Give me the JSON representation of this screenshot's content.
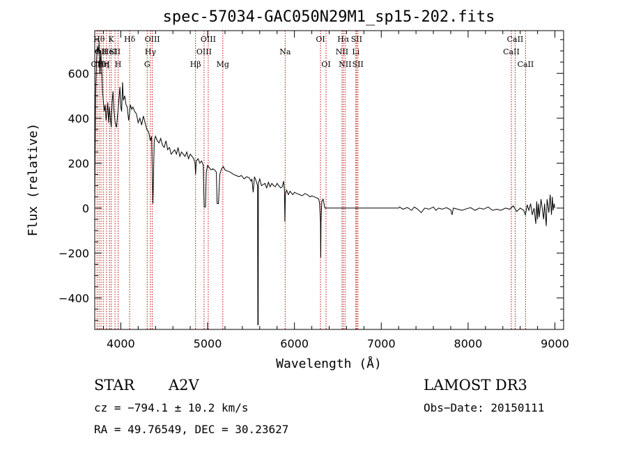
{
  "chart_data": {
    "type": "line",
    "title": "spec-57034-GAC050N29M1_sp15-202.fits",
    "xlabel": "Wavelength (Å)",
    "ylabel": "Flux (relative)",
    "xlim": [
      3700,
      9100
    ],
    "ylim": [
      -540,
      790
    ],
    "x_ticks": [
      4000,
      5000,
      6000,
      7000,
      8000,
      9000
    ],
    "y_ticks": [
      -400,
      -200,
      0,
      200,
      400,
      600
    ],
    "grid": false,
    "series": [
      {
        "points": [
          [
            3700,
            0
          ],
          [
            3705,
            250
          ],
          [
            3710,
            500
          ],
          [
            3720,
            650
          ],
          [
            3730,
            720
          ],
          [
            3740,
            690
          ],
          [
            3750,
            740
          ],
          [
            3760,
            600
          ],
          [
            3770,
            700
          ],
          [
            3780,
            620
          ],
          [
            3790,
            520
          ],
          [
            3800,
            470
          ],
          [
            3810,
            430
          ],
          [
            3820,
            460
          ],
          [
            3830,
            390
          ],
          [
            3840,
            420
          ],
          [
            3850,
            470
          ],
          [
            3860,
            380
          ],
          [
            3870,
            450
          ],
          [
            3880,
            400
          ],
          [
            3890,
            360
          ],
          [
            3900,
            470
          ],
          [
            3910,
            520
          ],
          [
            3920,
            440
          ],
          [
            3935,
            380
          ],
          [
            3950,
            360
          ],
          [
            3965,
            420
          ],
          [
            3980,
            490
          ],
          [
            3990,
            540
          ],
          [
            4000,
            450
          ],
          [
            4010,
            430
          ],
          [
            4020,
            560
          ],
          [
            4030,
            480
          ],
          [
            4045,
            500
          ],
          [
            4060,
            460
          ],
          [
            4075,
            450
          ],
          [
            4090,
            390
          ],
          [
            4100,
            420
          ],
          [
            4110,
            460
          ],
          [
            4125,
            440
          ],
          [
            4140,
            450
          ],
          [
            4160,
            430
          ],
          [
            4180,
            420
          ],
          [
            4200,
            380
          ],
          [
            4220,
            400
          ],
          [
            4240,
            370
          ],
          [
            4260,
            410
          ],
          [
            4280,
            380
          ],
          [
            4300,
            350
          ],
          [
            4320,
            340
          ],
          [
            4340,
            300
          ],
          [
            4355,
            320
          ],
          [
            4370,
            20
          ],
          [
            4385,
            300
          ],
          [
            4400,
            320
          ],
          [
            4420,
            300
          ],
          [
            4440,
            290
          ],
          [
            4460,
            310
          ],
          [
            4480,
            280
          ],
          [
            4500,
            270
          ],
          [
            4520,
            300
          ],
          [
            4540,
            260
          ],
          [
            4560,
            270
          ],
          [
            4580,
            240
          ],
          [
            4600,
            250
          ],
          [
            4620,
            260
          ],
          [
            4640,
            240
          ],
          [
            4660,
            270
          ],
          [
            4680,
            230
          ],
          [
            4700,
            250
          ],
          [
            4720,
            240
          ],
          [
            4740,
            230
          ],
          [
            4760,
            250
          ],
          [
            4780,
            220
          ],
          [
            4800,
            240
          ],
          [
            4820,
            230
          ],
          [
            4840,
            220
          ],
          [
            4855,
            200
          ],
          [
            4861,
            150
          ],
          [
            4870,
            210
          ],
          [
            4890,
            220
          ],
          [
            4910,
            200
          ],
          [
            4930,
            210
          ],
          [
            4950,
            190
          ],
          [
            4960,
            5
          ],
          [
            4975,
            5
          ],
          [
            4985,
            160
          ],
          [
            5000,
            190
          ],
          [
            5020,
            180
          ],
          [
            5040,
            170
          ],
          [
            5060,
            175
          ],
          [
            5080,
            170
          ],
          [
            5100,
            160
          ],
          [
            5110,
            20
          ],
          [
            5125,
            20
          ],
          [
            5140,
            150
          ],
          [
            5160,
            175
          ],
          [
            5180,
            185
          ],
          [
            5200,
            170
          ],
          [
            5230,
            165
          ],
          [
            5260,
            160
          ],
          [
            5300,
            150
          ],
          [
            5330,
            145
          ],
          [
            5360,
            140
          ],
          [
            5390,
            145
          ],
          [
            5420,
            130
          ],
          [
            5450,
            140
          ],
          [
            5480,
            135
          ],
          [
            5500,
            120
          ],
          [
            5510,
            130
          ],
          [
            5525,
            70
          ],
          [
            5540,
            140
          ],
          [
            5560,
            120
          ],
          [
            5575,
            100
          ],
          [
            5578,
            -520
          ],
          [
            5582,
            -520
          ],
          [
            5585,
            110
          ],
          [
            5600,
            130
          ],
          [
            5620,
            100
          ],
          [
            5640,
            105
          ],
          [
            5660,
            110
          ],
          [
            5680,
            90
          ],
          [
            5700,
            115
          ],
          [
            5720,
            95
          ],
          [
            5740,
            110
          ],
          [
            5760,
            100
          ],
          [
            5780,
            95
          ],
          [
            5800,
            110
          ],
          [
            5820,
            100
          ],
          [
            5840,
            90
          ],
          [
            5860,
            95
          ],
          [
            5875,
            120
          ],
          [
            5885,
            80
          ],
          [
            5890,
            -60
          ],
          [
            5895,
            60
          ],
          [
            5910,
            80
          ],
          [
            5930,
            60
          ],
          [
            5950,
            75
          ],
          [
            5980,
            60
          ],
          [
            6000,
            70
          ],
          [
            6030,
            65
          ],
          [
            6060,
            60
          ],
          [
            6090,
            55
          ],
          [
            6120,
            65
          ],
          [
            6150,
            60
          ],
          [
            6180,
            50
          ],
          [
            6200,
            55
          ],
          [
            6230,
            50
          ],
          [
            6260,
            45
          ],
          [
            6280,
            40
          ],
          [
            6290,
            20
          ],
          [
            6300,
            -60
          ],
          [
            6303,
            -220
          ],
          [
            6306,
            -60
          ],
          [
            6315,
            30
          ],
          [
            6330,
            40
          ],
          [
            6350,
            0
          ],
          [
            6400,
            0
          ],
          [
            6500,
            0
          ],
          [
            6600,
            0
          ],
          [
            6700,
            0
          ],
          [
            6800,
            0
          ],
          [
            6900,
            0
          ],
          [
            7000,
            0
          ],
          [
            7100,
            0
          ],
          [
            7200,
            0
          ],
          [
            7210,
            5
          ],
          [
            7250,
            -5
          ],
          [
            7300,
            3
          ],
          [
            7350,
            -10
          ],
          [
            7380,
            5
          ],
          [
            7420,
            -5
          ],
          [
            7460,
            -20
          ],
          [
            7500,
            0
          ],
          [
            7550,
            -5
          ],
          [
            7600,
            5
          ],
          [
            7630,
            -10
          ],
          [
            7660,
            0
          ],
          [
            7700,
            -5
          ],
          [
            7750,
            2
          ],
          [
            7800,
            -8
          ],
          [
            7815,
            -30
          ],
          [
            7830,
            0
          ],
          [
            7880,
            -5
          ],
          [
            7930,
            -10
          ],
          [
            7980,
            -3
          ],
          [
            8030,
            2
          ],
          [
            8080,
            -10
          ],
          [
            8130,
            0
          ],
          [
            8180,
            -5
          ],
          [
            8230,
            5
          ],
          [
            8280,
            -10
          ],
          [
            8330,
            -5
          ],
          [
            8380,
            -10
          ],
          [
            8430,
            0
          ],
          [
            8480,
            -5
          ],
          [
            8520,
            10
          ],
          [
            8560,
            -15
          ],
          [
            8600,
            0
          ],
          [
            8640,
            -10
          ],
          [
            8660,
            -30
          ],
          [
            8680,
            15
          ],
          [
            8700,
            -10
          ],
          [
            8720,
            20
          ],
          [
            8740,
            -30
          ],
          [
            8760,
            0
          ],
          [
            8780,
            -70
          ],
          [
            8790,
            30
          ],
          [
            8800,
            -50
          ],
          [
            8810,
            20
          ],
          [
            8820,
            -40
          ],
          [
            8840,
            40
          ],
          [
            8860,
            -20
          ],
          [
            8870,
            -50
          ],
          [
            8880,
            20
          ],
          [
            8900,
            -80
          ],
          [
            8910,
            40
          ],
          [
            8930,
            -20
          ],
          [
            8945,
            60
          ],
          [
            8960,
            -30
          ],
          [
            8970,
            50
          ],
          [
            8980,
            -10
          ],
          [
            8990,
            20
          ],
          [
            9000,
            0
          ]
        ]
      }
    ],
    "lines": [
      {
        "wave": 3727,
        "label": "OII",
        "row": 3
      },
      {
        "wave": 3750,
        "label": "Hθ",
        "row": 1
      },
      {
        "wave": 3772,
        "label": "OII",
        "row": 2
      },
      {
        "wave": 3798,
        "label": "Hη",
        "row": 3
      },
      {
        "wave": 3835,
        "label": "H",
        "row": 3
      },
      {
        "wave": 3869,
        "label": "HeI",
        "row": 2
      },
      {
        "wave": 3889,
        "label": "K",
        "row": 1
      },
      {
        "wave": 3934,
        "label": "SII",
        "row": 2
      },
      {
        "wave": 3969,
        "label": "H",
        "row": 3
      },
      {
        "wave": 4102,
        "label": "Hδ",
        "row": 1
      },
      {
        "wave": 4304,
        "label": "G",
        "row": 3
      },
      {
        "wave": 4341,
        "label": "Hγ",
        "row": 2
      },
      {
        "wave": 4363,
        "label": "OIII",
        "row": 1
      },
      {
        "wave": 4861,
        "label": "Hβ",
        "row": 3
      },
      {
        "wave": 4959,
        "label": "OIII",
        "row": 2
      },
      {
        "wave": 5007,
        "label": "OIII",
        "row": 1
      },
      {
        "wave": 5175,
        "label": "Mg",
        "row": 3
      },
      {
        "wave": 5893,
        "label": "Na",
        "row": 2
      },
      {
        "wave": 6300,
        "label": "OI",
        "row": 1
      },
      {
        "wave": 6364,
        "label": "OI",
        "row": 3
      },
      {
        "wave": 6548,
        "label": "NII",
        "row": 2
      },
      {
        "wave": 6563,
        "label": "Hα",
        "row": 1
      },
      {
        "wave": 6583,
        "label": "NII",
        "row": 3
      },
      {
        "wave": 6707,
        "label": "Li",
        "row": 2
      },
      {
        "wave": 6716,
        "label": "SII",
        "row": 1
      },
      {
        "wave": 6731,
        "label": "SII",
        "row": 3
      },
      {
        "wave": 8498,
        "label": "CaII",
        "row": 2
      },
      {
        "wave": 8542,
        "label": "CaII",
        "row": 1
      },
      {
        "wave": 8662,
        "label": "CaII",
        "row": 3
      }
    ]
  },
  "info": {
    "class_label": "STAR",
    "subclass": "A2V",
    "survey": "LAMOST DR3",
    "cz": "cz = −794.1 ± 10.2 km/s",
    "obs_date": "Obs−Date: 20150111",
    "coords": "RA =  49.76549, DEC =  30.23627"
  }
}
